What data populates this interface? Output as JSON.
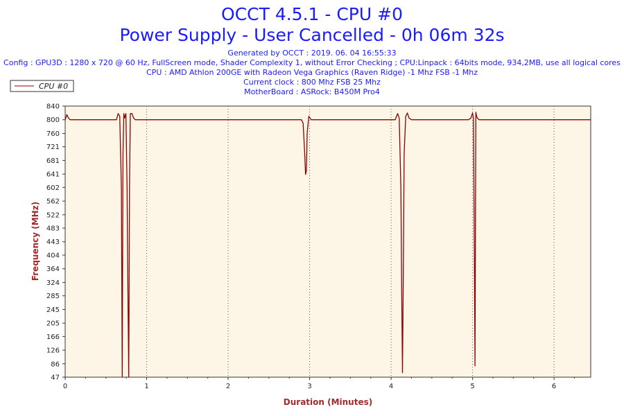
{
  "header": {
    "title_line1": "OCCT 4.5.1 - CPU #0",
    "title_line2": "Power Supply - User Cancelled - 0h 06m 32s",
    "generated": "Generated by OCCT : 2019. 06. 04 16:55:33",
    "config": "Config : GPU3D : 1280 x 720 @ 60 Hz, FullScreen mode, Shader Complexity 1, without Error Checking ; CPU:Linpack : 64bits mode, 934,2MB, use all logical cores",
    "cpu": "CPU : AMD Athlon 200GE with Radeon Vega Graphics (Raven Ridge) -1 Mhz FSB -1 Mhz",
    "clock": "Current clock : 800 Mhz FSB 25 Mhz",
    "motherboard": "MotherBoard : ASRock: B450M Pro4"
  },
  "colors": {
    "plot_background": "#fdf5e6",
    "series_line": "#8b0000",
    "title_text": "#1a1aff",
    "axis_label_text": "#a52a2a"
  },
  "chart_data": {
    "type": "line",
    "title": "OCCT 4.5.1 - CPU #0",
    "subtitle": "Power Supply - User Cancelled - 0h 06m 32s",
    "xlabel": "Duration (Minutes)",
    "ylabel": "Frequency (MHz)",
    "xlim": [
      0,
      6.45
    ],
    "ylim": [
      47,
      840
    ],
    "xticks": [
      "0",
      "1",
      "2",
      "3",
      "4",
      "5",
      "6"
    ],
    "yticks": [
      "47",
      "86",
      "126",
      "166",
      "205",
      "245",
      "285",
      "324",
      "364",
      "404",
      "443",
      "483",
      "522",
      "562",
      "602",
      "641",
      "681",
      "721",
      "760",
      "800",
      "840"
    ],
    "grid": {
      "x": true,
      "y": false,
      "style": "dotted"
    },
    "legend": {
      "position": "top-left",
      "entries": [
        "CPU #0"
      ]
    },
    "series": [
      {
        "name": "CPU #0",
        "x": [
          0,
          0.02,
          0.04,
          0.06,
          0.1,
          0.5,
          0.63,
          0.65,
          0.67,
          0.69,
          0.7,
          0.71,
          0.72,
          0.73,
          0.745,
          0.76,
          0.77,
          0.78,
          0.79,
          0.8,
          0.82,
          0.84,
          0.86,
          0.9,
          1.5,
          2.5,
          2.9,
          2.92,
          2.94,
          2.95,
          2.96,
          2.97,
          2.99,
          3.02,
          3.5,
          4.0,
          4.05,
          4.08,
          4.1,
          4.12,
          4.13,
          4.14,
          4.15,
          4.16,
          4.18,
          4.2,
          4.22,
          4.25,
          4.5,
          4.95,
          4.98,
          5.0,
          5.01,
          5.02,
          5.03,
          5.04,
          5.05,
          5.06,
          5.08,
          5.1,
          6.0,
          6.45
        ],
        "y": [
          800,
          815,
          805,
          800,
          800,
          800,
          800,
          818,
          810,
          600,
          47,
          700,
          818,
          805,
          818,
          600,
          300,
          47,
          600,
          818,
          818,
          805,
          800,
          800,
          800,
          800,
          800,
          790,
          700,
          640,
          650,
          760,
          810,
          800,
          800,
          800,
          800,
          818,
          805,
          600,
          300,
          60,
          350,
          700,
          810,
          820,
          805,
          800,
          800,
          800,
          805,
          820,
          805,
          500,
          80,
          822,
          810,
          805,
          800,
          800,
          800,
          800
        ]
      }
    ]
  }
}
